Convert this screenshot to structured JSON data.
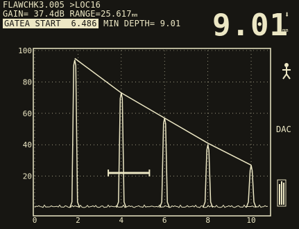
{
  "header": {
    "file_line": "FLAWCHK3.005 >LOC16",
    "gain_line": "GAIN= 37.4dB RANGE=25.617",
    "range_unit": "mm",
    "gate_label": "GATEA START",
    "gate_value": "6.486",
    "min_depth": "MIN DEPTH= 9.01"
  },
  "reading": {
    "value": "9.01",
    "unit": "mm"
  },
  "right_panel": {
    "mode_label": "DAC"
  },
  "chart_data": {
    "type": "line",
    "y_ticks": [
      "100",
      "80",
      "60",
      "40",
      "20"
    ],
    "x_ticks": [
      "0",
      "2",
      "4",
      "6",
      "8",
      "10"
    ],
    "xlim": [
      0,
      10.8
    ],
    "ylim": [
      0,
      100
    ],
    "echoes": [
      {
        "x": 1.85,
        "y": 94
      },
      {
        "x": 4.0,
        "y": 73
      },
      {
        "x": 6.0,
        "y": 57
      },
      {
        "x": 8.0,
        "y": 40
      },
      {
        "x": 10.0,
        "y": 27
      }
    ],
    "dac_curve": [
      {
        "x": 1.85,
        "y": 95
      },
      {
        "x": 4.0,
        "y": 73
      },
      {
        "x": 6.0,
        "y": 57
      },
      {
        "x": 8.0,
        "y": 41
      },
      {
        "x": 10.0,
        "y": 27
      }
    ],
    "gate": {
      "start": 3.4,
      "end": 5.3,
      "level": 22
    }
  },
  "colors": {
    "trace": "#ece7c4",
    "background": "#171612"
  }
}
